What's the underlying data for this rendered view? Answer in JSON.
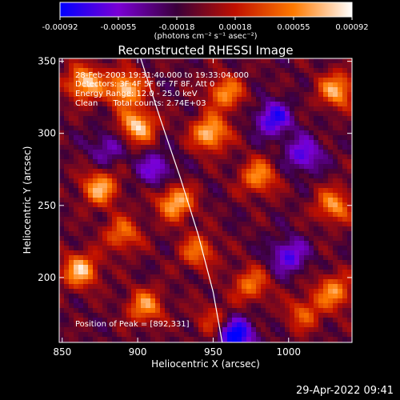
{
  "chart_data": {
    "type": "heatmap",
    "title": "Reconstructed RHESSI Image",
    "xlabel": "Heliocentric X (arcsec)",
    "ylabel": "Heliocentric Y (arcsec)",
    "xlim": [
      848,
      1042
    ],
    "ylim": [
      155,
      352
    ],
    "x_ticks": [
      850,
      900,
      950,
      1000
    ],
    "y_ticks": [
      200,
      250,
      300,
      350
    ],
    "colorbar": {
      "range": [
        -0.00092,
        0.00092
      ],
      "tick_labels": [
        "-0.00092",
        "-0.00055",
        "-0.00018",
        "0.00018",
        "0.00055",
        "0.00092"
      ],
      "units": "(photons cm⁻² s⁻¹ asec⁻²)",
      "colors": [
        "#0000ff",
        "#7a00d4",
        "#3a003a",
        "#c01000",
        "#ff7a00",
        "#ffffff"
      ]
    },
    "annotations": {
      "time": "28-Feb-2003 19:31:40.000 to 19:33:04.000",
      "detectors": "Detectors: 3F 4F 5F 6F 7F 8F, Att 0",
      "energy": "Energy Range: 12.0 - 25.0 keV",
      "method": "Clean      Total counts: 2.74E+03",
      "peak": "Position of Peak = [892,331]"
    },
    "limb_arc": [
      [
        902,
        352
      ],
      [
        915,
        310
      ],
      [
        928,
        270
      ],
      [
        940,
        230
      ],
      [
        950,
        190
      ],
      [
        956,
        155
      ]
    ],
    "bright_spots": [
      {
        "x": 865,
        "y": 335,
        "v": 0.0009
      },
      {
        "x": 892,
        "y": 331,
        "v": 0.00092
      },
      {
        "x": 900,
        "y": 305,
        "v": 0.0009
      },
      {
        "x": 875,
        "y": 262,
        "v": 0.0008
      },
      {
        "x": 925,
        "y": 252,
        "v": 0.00085
      },
      {
        "x": 948,
        "y": 300,
        "v": 0.0009
      },
      {
        "x": 958,
        "y": 328,
        "v": 0.0007
      },
      {
        "x": 940,
        "y": 218,
        "v": 0.0006
      },
      {
        "x": 862,
        "y": 205,
        "v": 0.00085
      },
      {
        "x": 905,
        "y": 180,
        "v": 0.0007
      },
      {
        "x": 980,
        "y": 270,
        "v": 0.0007
      },
      {
        "x": 1032,
        "y": 330,
        "v": 0.0008
      },
      {
        "x": 1030,
        "y": 250,
        "v": 0.0007
      },
      {
        "x": 975,
        "y": 195,
        "v": 0.0006
      },
      {
        "x": 1030,
        "y": 190,
        "v": 0.0007
      },
      {
        "x": 1010,
        "y": 175,
        "v": 0.0005
      },
      {
        "x": 950,
        "y": 170,
        "v": 0.0004
      },
      {
        "x": 890,
        "y": 230,
        "v": 0.0006
      }
    ],
    "dark_spots": [
      {
        "x": 990,
        "y": 310,
        "v": -0.0007
      },
      {
        "x": 1000,
        "y": 215,
        "v": -0.0006
      },
      {
        "x": 965,
        "y": 160,
        "v": -0.0009
      },
      {
        "x": 880,
        "y": 290,
        "v": -0.0004
      },
      {
        "x": 912,
        "y": 275,
        "v": -0.0005
      },
      {
        "x": 1010,
        "y": 285,
        "v": -0.0006
      }
    ]
  },
  "timestamp": "29-Apr-2022 09:41"
}
